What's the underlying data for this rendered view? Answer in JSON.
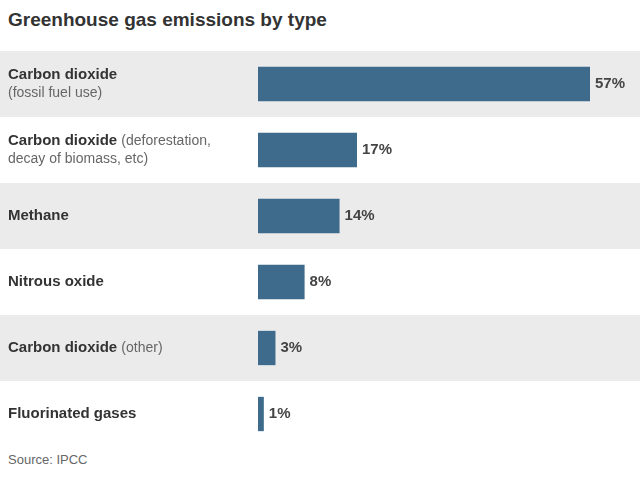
{
  "chart_data": {
    "type": "bar",
    "orientation": "horizontal",
    "title": "Greenhouse gas emissions by type",
    "source": "Source: IPCC",
    "categories": [
      [
        "Carbon dioxide",
        "(fossil fuel use)"
      ],
      [
        "Carbon dioxide (deforestation,",
        "decay of biomass, etc)"
      ],
      [
        "Methane"
      ],
      [
        "Nitrous oxide"
      ],
      [
        "Carbon dioxide (other)"
      ],
      [
        "Fluorinated gases"
      ]
    ],
    "values": [
      57,
      17,
      14,
      8,
      3,
      1
    ],
    "value_labels": [
      "57%",
      "17%",
      "14%",
      "8%",
      "3%",
      "1%"
    ],
    "color": "#3e6a8c",
    "xlim": [
      0,
      57
    ],
    "grid": false,
    "tick_labels": false,
    "data_labels": true
  }
}
